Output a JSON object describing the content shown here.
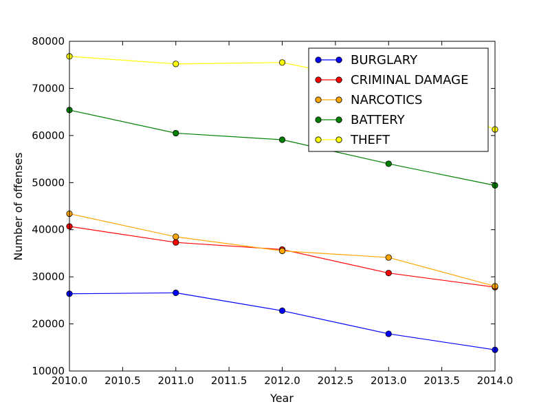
{
  "chart_data": {
    "type": "line",
    "title": "",
    "xlabel": "Year",
    "ylabel": "Number of offenses",
    "xlim": [
      2010.0,
      2014.0
    ],
    "ylim": [
      10000,
      80000
    ],
    "xticks": [
      "2010.0",
      "2010.5",
      "2011.0",
      "2011.5",
      "2012.0",
      "2012.5",
      "2013.0",
      "2013.5",
      "2014.0"
    ],
    "yticks": [
      "10000",
      "20000",
      "30000",
      "40000",
      "50000",
      "60000",
      "70000",
      "80000"
    ],
    "grid": false,
    "legend_position": "top-right",
    "x": [
      2010,
      2011,
      2012,
      2013,
      2014
    ],
    "series": [
      {
        "name": "BURGLARY",
        "color": "#0000ff",
        "values": [
          26400,
          26600,
          22800,
          17900,
          14500
        ]
      },
      {
        "name": "CRIMINAL DAMAGE",
        "color": "#ff0000",
        "values": [
          40700,
          37300,
          35800,
          30800,
          27800
        ]
      },
      {
        "name": "NARCOTICS",
        "color": "#ffa500",
        "values": [
          43400,
          38500,
          35500,
          34100,
          28000
        ]
      },
      {
        "name": "BATTERY",
        "color": "#008000",
        "values": [
          65400,
          60500,
          59100,
          54000,
          49400
        ]
      },
      {
        "name": "THEFT",
        "color": "#ffff00",
        "values": [
          76800,
          75200,
          75500,
          70900,
          61300
        ]
      }
    ]
  }
}
